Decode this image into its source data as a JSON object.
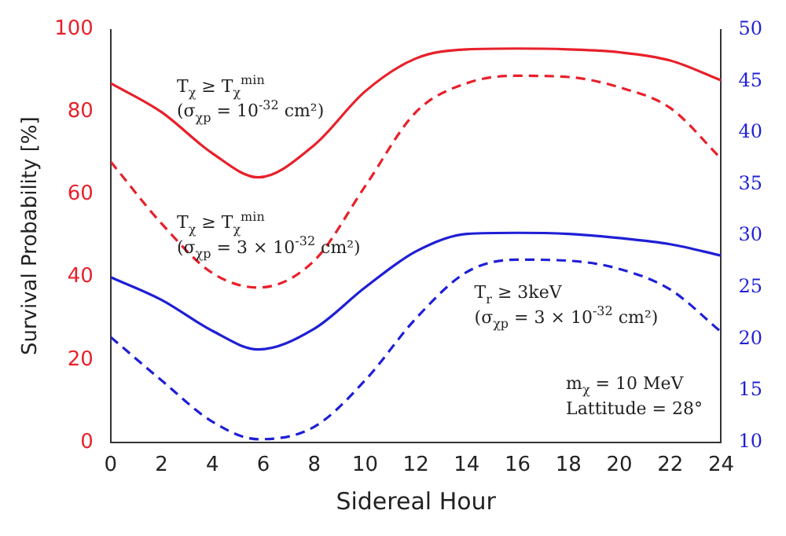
{
  "chart_data": {
    "type": "line",
    "xlabel": "Sidereal Hour",
    "ylabel": "Survival Probability [%]",
    "x": [
      0,
      2,
      4,
      5.8,
      8,
      10,
      12,
      14,
      16,
      18,
      20,
      22,
      24
    ],
    "xlim": [
      0,
      24
    ],
    "xticks": [
      0,
      2,
      4,
      6,
      8,
      10,
      12,
      14,
      16,
      18,
      20,
      22,
      24
    ],
    "ylim": [
      0,
      100
    ],
    "yticks": [
      0,
      20,
      40,
      60,
      80,
      100
    ],
    "y2lim": [
      10,
      50
    ],
    "y2ticks": [
      10,
      15,
      20,
      25,
      30,
      35,
      40,
      45,
      50
    ],
    "grid": false,
    "legend": false,
    "marker": "none",
    "series": [
      {
        "color": "#e8202a",
        "line_style": "solid",
        "values": [
          87,
          80,
          70,
          64.2,
          72,
          85,
          93,
          95.2,
          95.4,
          95.2,
          94.5,
          92.5,
          87.7
        ]
      },
      {
        "color": "#e8202a",
        "line_style": "dashed",
        "values": [
          68,
          53,
          41,
          37.5,
          44,
          62,
          80,
          87,
          88.8,
          88.5,
          86,
          81,
          68.7
        ]
      },
      {
        "color": "#1f1fd6",
        "line_style": "solid",
        "axis": "y2",
        "values": [
          26,
          23.8,
          20.8,
          19,
          21,
          25,
          28.5,
          30.2,
          30.3,
          30.2,
          29.8,
          29.2,
          28.1
        ]
      },
      {
        "color": "#1f1fd6",
        "line_style": "dashed",
        "axis": "y2",
        "values": [
          20.2,
          16,
          12,
          10.3,
          11.5,
          16,
          22,
          26.5,
          27.7,
          27.6,
          26.8,
          24.8,
          20.7
        ]
      }
    ],
    "annotations": [
      "T$_{χ}$ ≥ T$_{χ}$$^{min}$",
      "(σ$_{χp}$ = 10$^{-32}$ cm²)",
      "T$_{χ}$ ≥ T$_{χ}$$^{min}$",
      "(σ$_{χp}$ = 3 × 10$^{-32}$ cm²)",
      "T$_{r}$ ≥ 3keV",
      "(σ$_{χp}$ = 3 × 10$^{-32}$ cm²)",
      "m$_{χ}$ = 10 MeV",
      "Lattitude = 28°"
    ]
  }
}
